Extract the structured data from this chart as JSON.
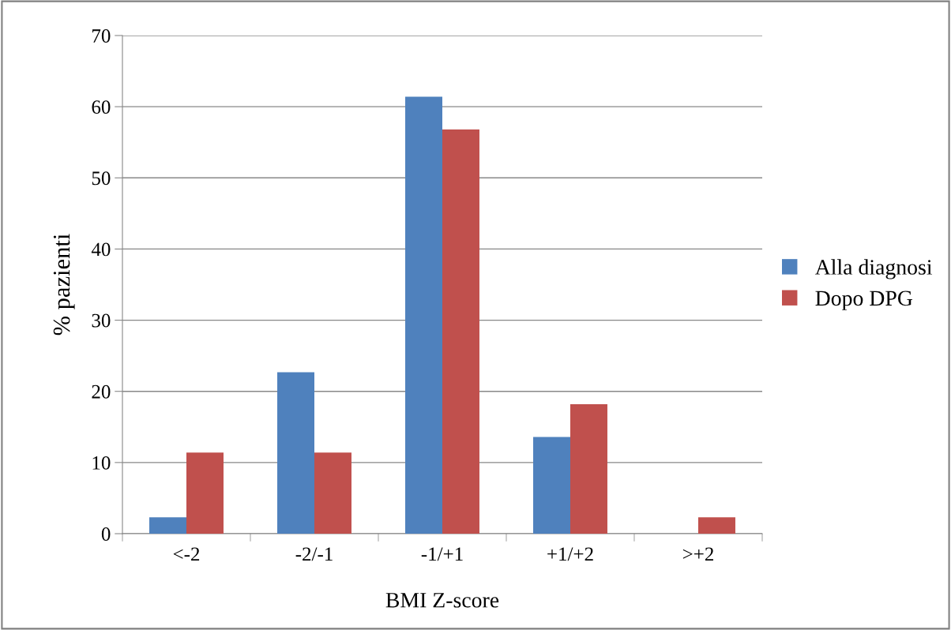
{
  "chart_data": {
    "type": "bar",
    "xlabel": "BMI Z-score",
    "ylabel": "% pazienti",
    "categories": [
      "<-2",
      "-2/-1",
      "-1/+1",
      "+1/+2",
      ">+2"
    ],
    "series": [
      {
        "name": "Alla diagnosi",
        "color": "#4f81bd",
        "values": [
          2.3,
          22.7,
          61.4,
          13.6,
          0
        ]
      },
      {
        "name": "Dopo DPG",
        "color": "#c0504d",
        "values": [
          11.4,
          11.4,
          56.8,
          18.2,
          2.3
        ]
      }
    ],
    "ylim": [
      0,
      70
    ],
    "yticks": [
      0,
      10,
      20,
      30,
      40,
      50,
      60,
      70
    ],
    "grid": "y",
    "legend": "right"
  }
}
